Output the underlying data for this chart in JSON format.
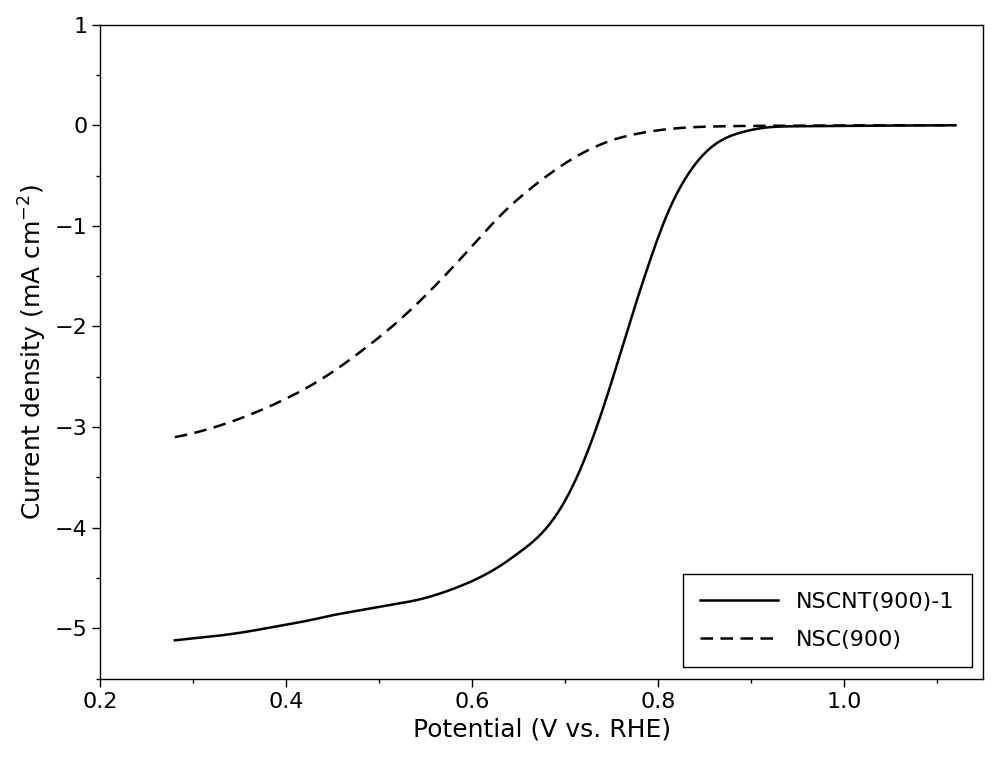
{
  "title": "",
  "xlabel": "Potential (V vs. RHE)",
  "ylabel": "Current density (mA cm$^{-2}$)",
  "xlim": [
    0.2,
    1.15
  ],
  "ylim": [
    -5.5,
    1.0
  ],
  "xticks": [
    0.2,
    0.4,
    0.6,
    0.8,
    1.0
  ],
  "yticks": [
    -5,
    -4,
    -3,
    -2,
    -1,
    0,
    1
  ],
  "legend_labels": [
    "NSCNT(900)-1",
    "NSC(900)"
  ],
  "line_color": "#000000",
  "background_color": "#ffffff",
  "xlabel_fontsize": 18,
  "ylabel_fontsize": 18,
  "tick_fontsize": 16,
  "legend_fontsize": 16,
  "nscnt_x": [
    0.28,
    0.3,
    0.33,
    0.36,
    0.39,
    0.42,
    0.45,
    0.48,
    0.51,
    0.54,
    0.57,
    0.6,
    0.63,
    0.65,
    0.67,
    0.69,
    0.71,
    0.73,
    0.75,
    0.77,
    0.79,
    0.81,
    0.83,
    0.85,
    0.87,
    0.89,
    0.91,
    0.95,
    1.0,
    1.05,
    1.1,
    1.12
  ],
  "nscnt_y": [
    -5.12,
    -5.1,
    -5.07,
    -5.03,
    -4.98,
    -4.93,
    -4.87,
    -4.82,
    -4.77,
    -4.72,
    -4.64,
    -4.53,
    -4.38,
    -4.25,
    -4.1,
    -3.88,
    -3.55,
    -3.1,
    -2.55,
    -1.95,
    -1.38,
    -0.88,
    -0.52,
    -0.28,
    -0.14,
    -0.07,
    -0.03,
    -0.01,
    -0.005,
    -0.003,
    -0.001,
    0.0
  ],
  "nsc_x": [
    0.28,
    0.3,
    0.33,
    0.36,
    0.39,
    0.42,
    0.45,
    0.48,
    0.51,
    0.54,
    0.57,
    0.6,
    0.63,
    0.66,
    0.69,
    0.72,
    0.75,
    0.78,
    0.82,
    0.87,
    0.92,
    0.97,
    1.02,
    1.07,
    1.1,
    1.12
  ],
  "nsc_y": [
    -3.1,
    -3.06,
    -2.98,
    -2.88,
    -2.76,
    -2.62,
    -2.45,
    -2.25,
    -2.03,
    -1.78,
    -1.5,
    -1.2,
    -0.9,
    -0.65,
    -0.44,
    -0.27,
    -0.15,
    -0.08,
    -0.03,
    -0.01,
    -0.005,
    -0.003,
    -0.001,
    0.0,
    0.0,
    0.0
  ]
}
